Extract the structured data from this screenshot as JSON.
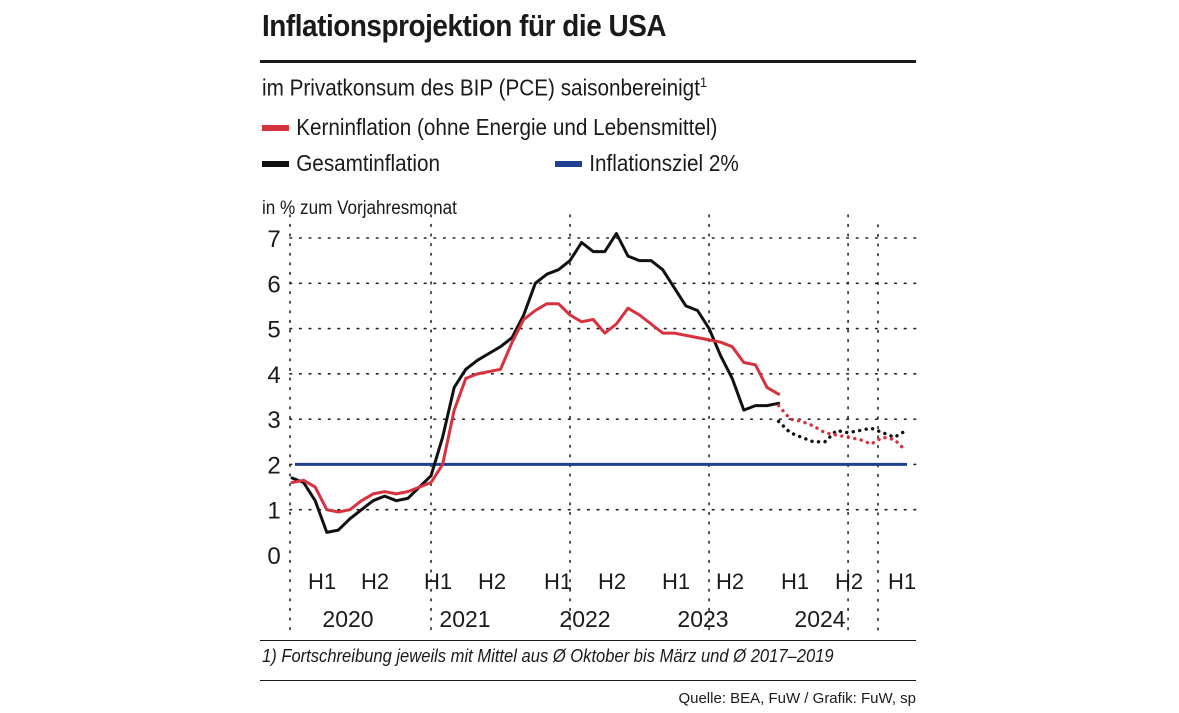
{
  "title": "Inflationsprojektion für die USA",
  "subtitle": "im Privatkonsum des BIP (PCE) saisonbereinigt",
  "subtitle_footnote_mark": "1",
  "legend": {
    "core": {
      "label": "Kerninflation (ohne Energie und Lebensmittel)",
      "color": "#d7323e"
    },
    "headline": {
      "label": "Gesamtinflation",
      "color": "#111111"
    },
    "target": {
      "label": "Inflationsziel 2%",
      "color": "#1f3f93"
    }
  },
  "footnote": "1) Fortschreibung jeweils mit Mittel aus Ø Oktober bis März und Ø 2017–2019",
  "source": "Quelle: BEA, FuW / Grafik: FuW, sp",
  "chart_data": {
    "type": "line",
    "ylabel": "in % zum Vorjahresmonat",
    "ylim": [
      0,
      7
    ],
    "yticks": [
      0,
      1,
      2,
      3,
      4,
      5,
      6,
      7
    ],
    "grid": true,
    "x_unit": "months since Jan 2020 (0 = Jan 2020)",
    "xlim": [
      0,
      53
    ],
    "half_year_ticks": [
      {
        "label": "H1",
        "x": 2.5
      },
      {
        "label": "H2",
        "x": 7.5
      },
      {
        "label": "H1",
        "x": 12.5
      },
      {
        "label": "H2",
        "x": 17.5
      },
      {
        "label": "H1",
        "x": 22.5
      },
      {
        "label": "H2",
        "x": 27.5
      },
      {
        "label": "H1",
        "x": 32.5
      },
      {
        "label": "H2",
        "x": 37.5
      },
      {
        "label": "H1",
        "x": 42.5
      },
      {
        "label": "H2",
        "x": 47.5
      },
      {
        "label": "H1",
        "x": 52.5
      }
    ],
    "year_ticks": [
      {
        "label": "2020",
        "x": 5
      },
      {
        "label": "2021",
        "x": 15
      },
      {
        "label": "2022",
        "x": 25
      },
      {
        "label": "2023",
        "x": 35
      },
      {
        "label": "2024",
        "x": 45
      }
    ],
    "target": 2.0,
    "series": [
      {
        "name": "Gesamtinflation",
        "color": "#111111",
        "x": [
          0,
          1,
          2,
          3,
          4,
          5,
          6,
          7,
          8,
          9,
          10,
          11,
          12,
          13,
          14,
          15,
          16,
          17,
          18,
          19,
          20,
          21,
          22,
          23,
          24,
          25,
          26,
          27,
          28,
          29,
          30,
          31,
          32,
          33,
          34,
          35,
          36,
          37,
          38,
          39,
          40,
          41,
          42
        ],
        "values": [
          1.7,
          1.6,
          1.2,
          0.5,
          0.55,
          0.8,
          1.0,
          1.2,
          1.3,
          1.2,
          1.25,
          1.5,
          1.75,
          2.6,
          3.7,
          4.1,
          4.3,
          4.45,
          4.6,
          4.8,
          5.3,
          6.0,
          6.2,
          6.3,
          6.5,
          6.9,
          6.7,
          6.7,
          7.1,
          6.6,
          6.5,
          6.5,
          6.3,
          5.9,
          5.5,
          5.4,
          5.0,
          4.4,
          3.9,
          3.2,
          3.3,
          3.3,
          3.35
        ],
        "projection": {
          "x": [
            42,
            43,
            44,
            45,
            46,
            47,
            48,
            49,
            50,
            51,
            52,
            53
          ],
          "values": [
            2.95,
            2.7,
            2.6,
            2.5,
            2.5,
            2.75,
            2.7,
            2.75,
            2.8,
            2.7,
            2.6,
            2.75
          ]
        }
      },
      {
        "name": "Kerninflation",
        "color": "#d7323e",
        "x": [
          0,
          1,
          2,
          3,
          4,
          5,
          6,
          7,
          8,
          9,
          10,
          11,
          12,
          13,
          14,
          15,
          16,
          17,
          18,
          19,
          20,
          21,
          22,
          23,
          24,
          25,
          26,
          27,
          28,
          29,
          30,
          31,
          32,
          33,
          34,
          35,
          36,
          37,
          38,
          39,
          40,
          41,
          42
        ],
        "values": [
          1.6,
          1.65,
          1.5,
          1.0,
          0.95,
          1.0,
          1.2,
          1.35,
          1.4,
          1.35,
          1.4,
          1.5,
          1.6,
          2.0,
          3.2,
          3.9,
          4.0,
          4.05,
          4.1,
          4.7,
          5.2,
          5.4,
          5.55,
          5.55,
          5.3,
          5.15,
          5.2,
          4.9,
          5.1,
          5.45,
          5.3,
          5.1,
          4.9,
          4.9,
          4.85,
          4.8,
          4.75,
          4.7,
          4.6,
          4.25,
          4.2,
          3.7,
          3.55
        ],
        "projection": {
          "x": [
            42,
            43,
            44,
            45,
            46,
            47,
            48,
            49,
            50,
            51,
            52,
            53
          ],
          "values": [
            3.3,
            3.0,
            2.95,
            2.85,
            2.7,
            2.65,
            2.6,
            2.55,
            2.45,
            2.6,
            2.55,
            2.3
          ]
        }
      }
    ]
  }
}
